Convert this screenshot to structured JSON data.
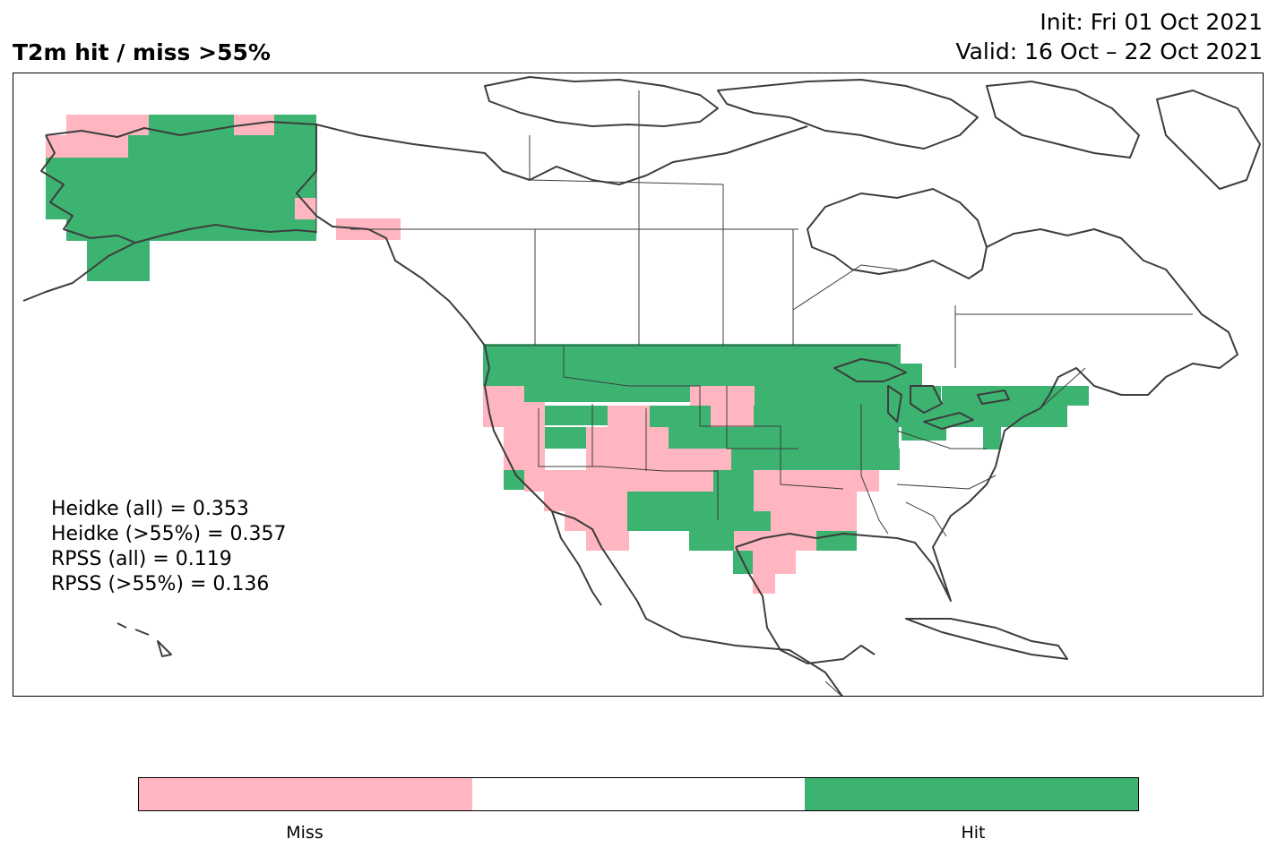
{
  "header": {
    "title": "T2m hit / miss  >55%",
    "init": "Init: Fri 01 Oct 2021",
    "valid": "Valid: 16 Oct – 22 Oct 2021"
  },
  "stats": [
    "Heidke (all) = 0.353",
    "Heidke (>55%) = 0.357",
    "RPSS (all) = 0.119",
    "RPSS (>55%) = 0.136"
  ],
  "legend": {
    "categories": [
      "Miss",
      "",
      "Hit"
    ],
    "colors": [
      "#ffb6c1",
      "#ffffff",
      "#3cb371"
    ],
    "tick_labels": [
      "Miss",
      "Hit"
    ]
  },
  "colors": {
    "hit": "#3cb371",
    "miss": "#ffb6c1",
    "coast": "#3d3d3d"
  }
}
